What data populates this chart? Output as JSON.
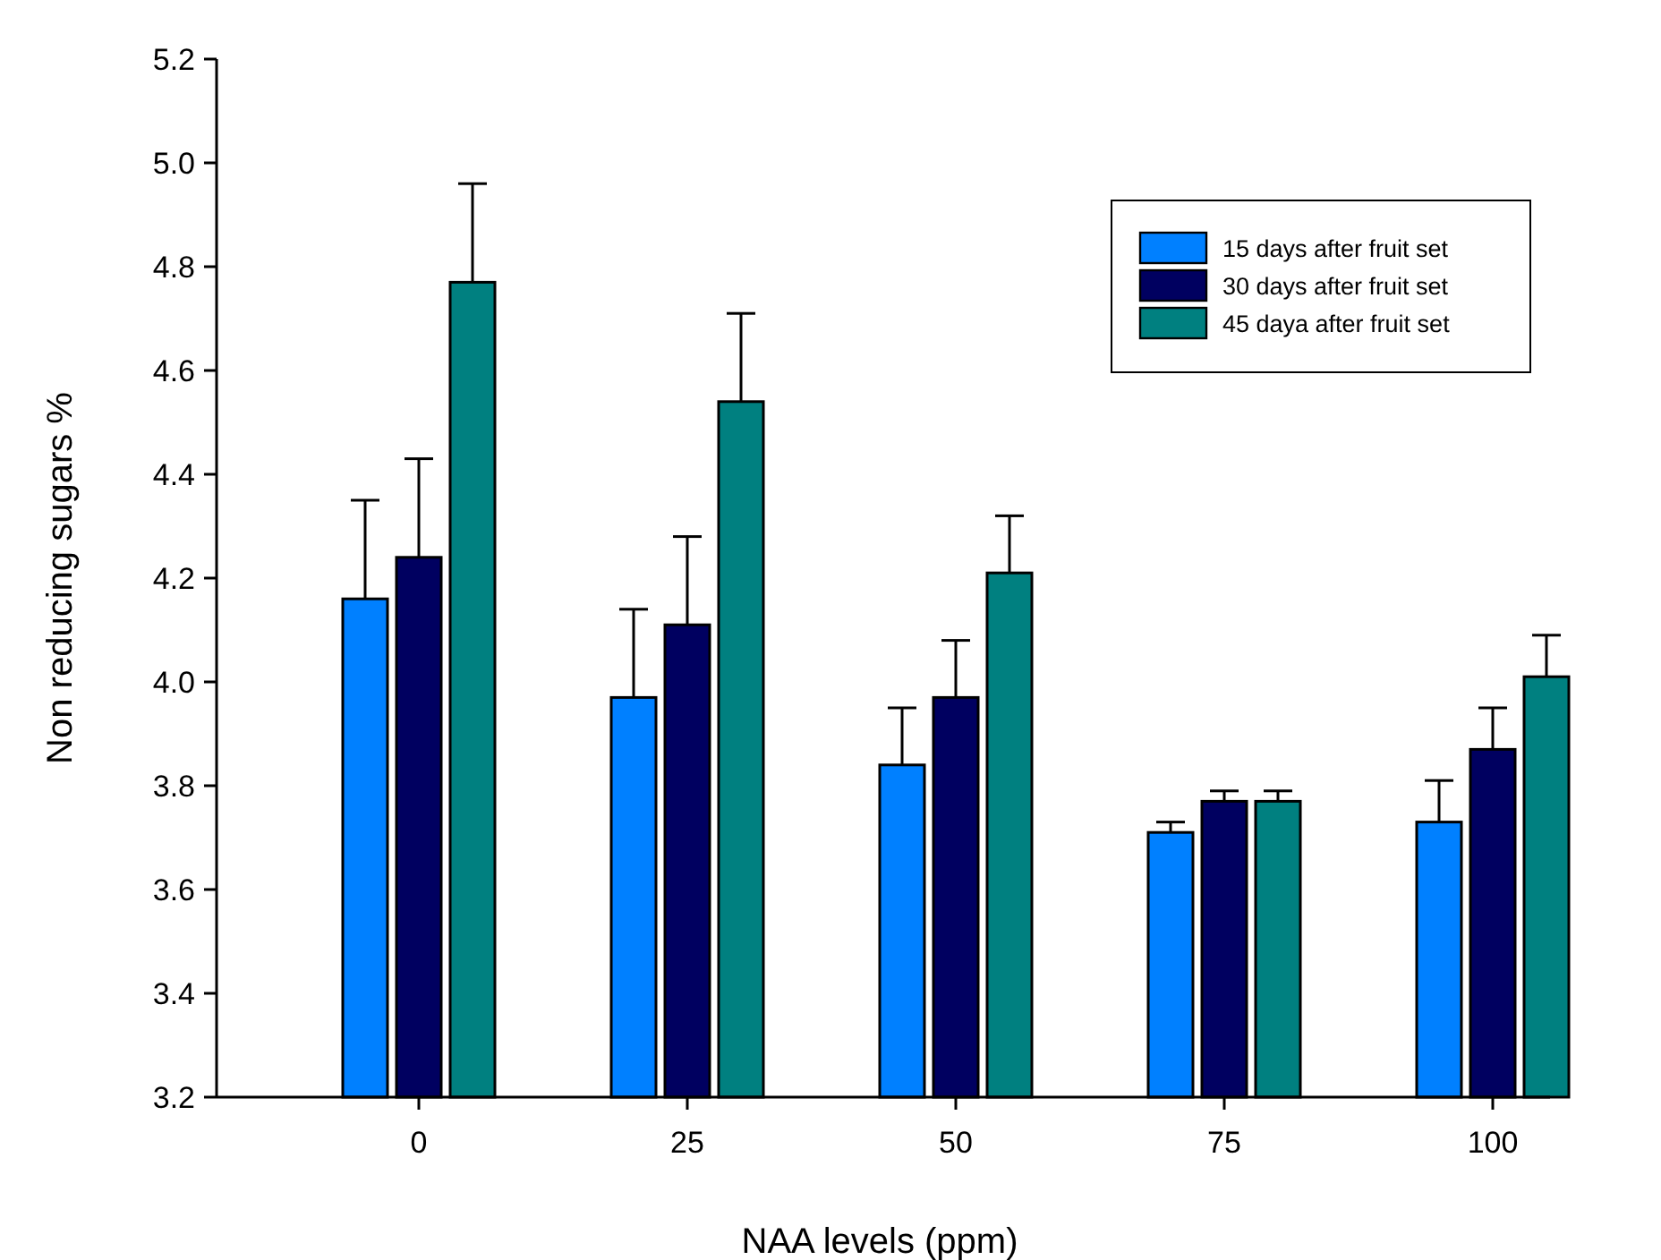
{
  "chart_data": {
    "type": "bar",
    "xlabel": "NAA levels (ppm)",
    "ylabel": "Non reducing sugars %",
    "categories": [
      "0",
      "25",
      "50",
      "75",
      "100"
    ],
    "series": [
      {
        "name": "15 days after fruit set",
        "color": "#0080ff",
        "values": [
          4.16,
          3.97,
          3.84,
          3.71,
          3.73
        ],
        "errors": [
          [
            4.16,
            4.35
          ],
          [
            3.97,
            4.14
          ],
          [
            3.84,
            3.95
          ],
          [
            3.71,
            3.73
          ],
          [
            3.73,
            3.81
          ]
        ]
      },
      {
        "name": "30 days after fruit set",
        "color": "#000060",
        "values": [
          4.24,
          4.11,
          3.97,
          3.77,
          3.87
        ],
        "errors": [
          [
            4.24,
            4.43
          ],
          [
            4.11,
            4.28
          ],
          [
            3.97,
            4.08
          ],
          [
            3.77,
            3.79
          ],
          [
            3.87,
            3.95
          ]
        ]
      },
      {
        "name": "45 daya after fruit set",
        "color": "#008080",
        "values": [
          4.77,
          4.54,
          4.21,
          3.77,
          4.01
        ],
        "errors": [
          [
            4.77,
            4.96
          ],
          [
            4.54,
            4.71
          ],
          [
            4.21,
            4.32
          ],
          [
            3.77,
            3.79
          ],
          [
            4.01,
            4.09
          ]
        ]
      }
    ],
    "ylim": [
      3.2,
      5.2
    ],
    "yticks": [
      {
        "value": 3.2,
        "label": "3.2"
      },
      {
        "value": 3.4,
        "label": "3.4"
      },
      {
        "value": 3.6,
        "label": "3.6"
      },
      {
        "value": 3.8,
        "label": "3.8"
      },
      {
        "value": 4.0,
        "label": "4.0"
      },
      {
        "value": 4.2,
        "label": "4.2"
      },
      {
        "value": 4.4,
        "label": "4.4"
      },
      {
        "value": 4.6,
        "label": "4.6"
      },
      {
        "value": 4.8,
        "label": "4.8"
      },
      {
        "value": 5.0,
        "label": "5.0"
      },
      {
        "value": 5.2,
        "label": "5.2"
      }
    ],
    "grid": false,
    "legend": "top right"
  }
}
